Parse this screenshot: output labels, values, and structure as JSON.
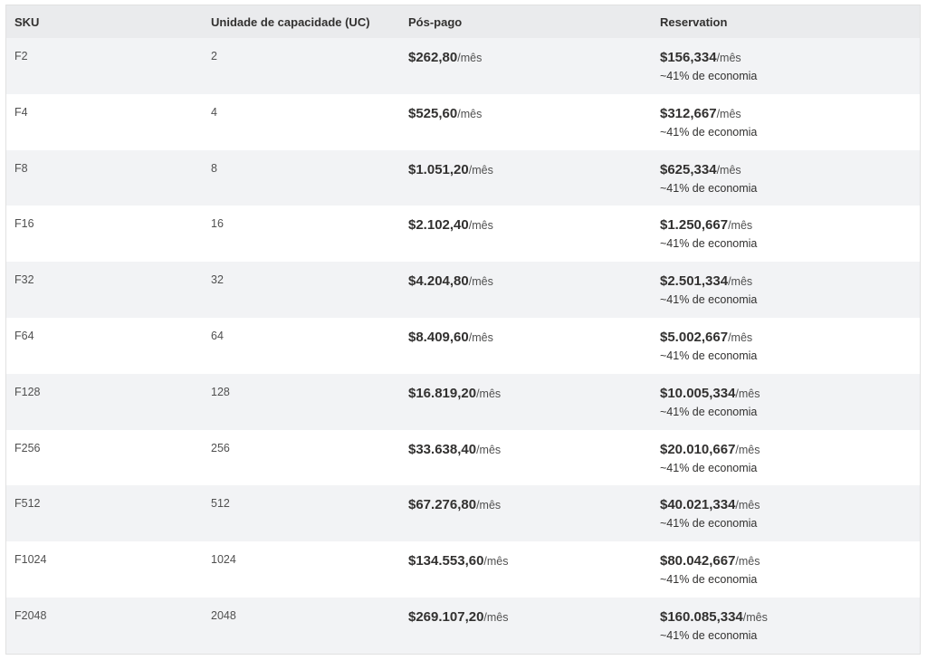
{
  "header": {
    "sku": "SKU",
    "cu": "Unidade de capacidade (UC)",
    "payg": "Pós-pago",
    "reservation": "Reservation"
  },
  "rows": [
    {
      "sku": "F2",
      "cu": "2",
      "payg_price": "$262,80",
      "payg_unit": "/mês",
      "res_price": "$156,334",
      "res_unit": "/mês",
      "savings": "~41% de economia"
    },
    {
      "sku": "F4",
      "cu": "4",
      "payg_price": "$525,60",
      "payg_unit": "/mês",
      "res_price": "$312,667",
      "res_unit": "/mês",
      "savings": "~41% de economia"
    },
    {
      "sku": "F8",
      "cu": "8",
      "payg_price": "$1.051,20",
      "payg_unit": "/mês",
      "res_price": "$625,334",
      "res_unit": "/mês",
      "savings": "~41% de economia"
    },
    {
      "sku": "F16",
      "cu": "16",
      "payg_price": "$2.102,40",
      "payg_unit": "/mês",
      "res_price": "$1.250,667",
      "res_unit": "/mês",
      "savings": "~41% de economia"
    },
    {
      "sku": "F32",
      "cu": "32",
      "payg_price": "$4.204,80",
      "payg_unit": "/mês",
      "res_price": "$2.501,334",
      "res_unit": "/mês",
      "savings": "~41% de economia"
    },
    {
      "sku": "F64",
      "cu": "64",
      "payg_price": "$8.409,60",
      "payg_unit": "/mês",
      "res_price": "$5.002,667",
      "res_unit": "/mês",
      "savings": "~41% de economia"
    },
    {
      "sku": "F128",
      "cu": "128",
      "payg_price": "$16.819,20",
      "payg_unit": "/mês",
      "res_price": "$10.005,334",
      "res_unit": "/mês",
      "savings": "~41% de economia"
    },
    {
      "sku": "F256",
      "cu": "256",
      "payg_price": "$33.638,40",
      "payg_unit": "/mês",
      "res_price": "$20.010,667",
      "res_unit": "/mês",
      "savings": "~41% de economia"
    },
    {
      "sku": "F512",
      "cu": "512",
      "payg_price": "$67.276,80",
      "payg_unit": "/mês",
      "res_price": "$40.021,334",
      "res_unit": "/mês",
      "savings": "~41% de economia"
    },
    {
      "sku": "F1024",
      "cu": "1024",
      "payg_price": "$134.553,60",
      "payg_unit": "/mês",
      "res_price": "$80.042,667",
      "res_unit": "/mês",
      "savings": "~41% de economia"
    },
    {
      "sku": "F2048",
      "cu": "2048",
      "payg_price": "$269.107,20",
      "payg_unit": "/mês",
      "res_price": "$160.085,334",
      "res_unit": "/mês",
      "savings": "~41% de economia"
    }
  ]
}
